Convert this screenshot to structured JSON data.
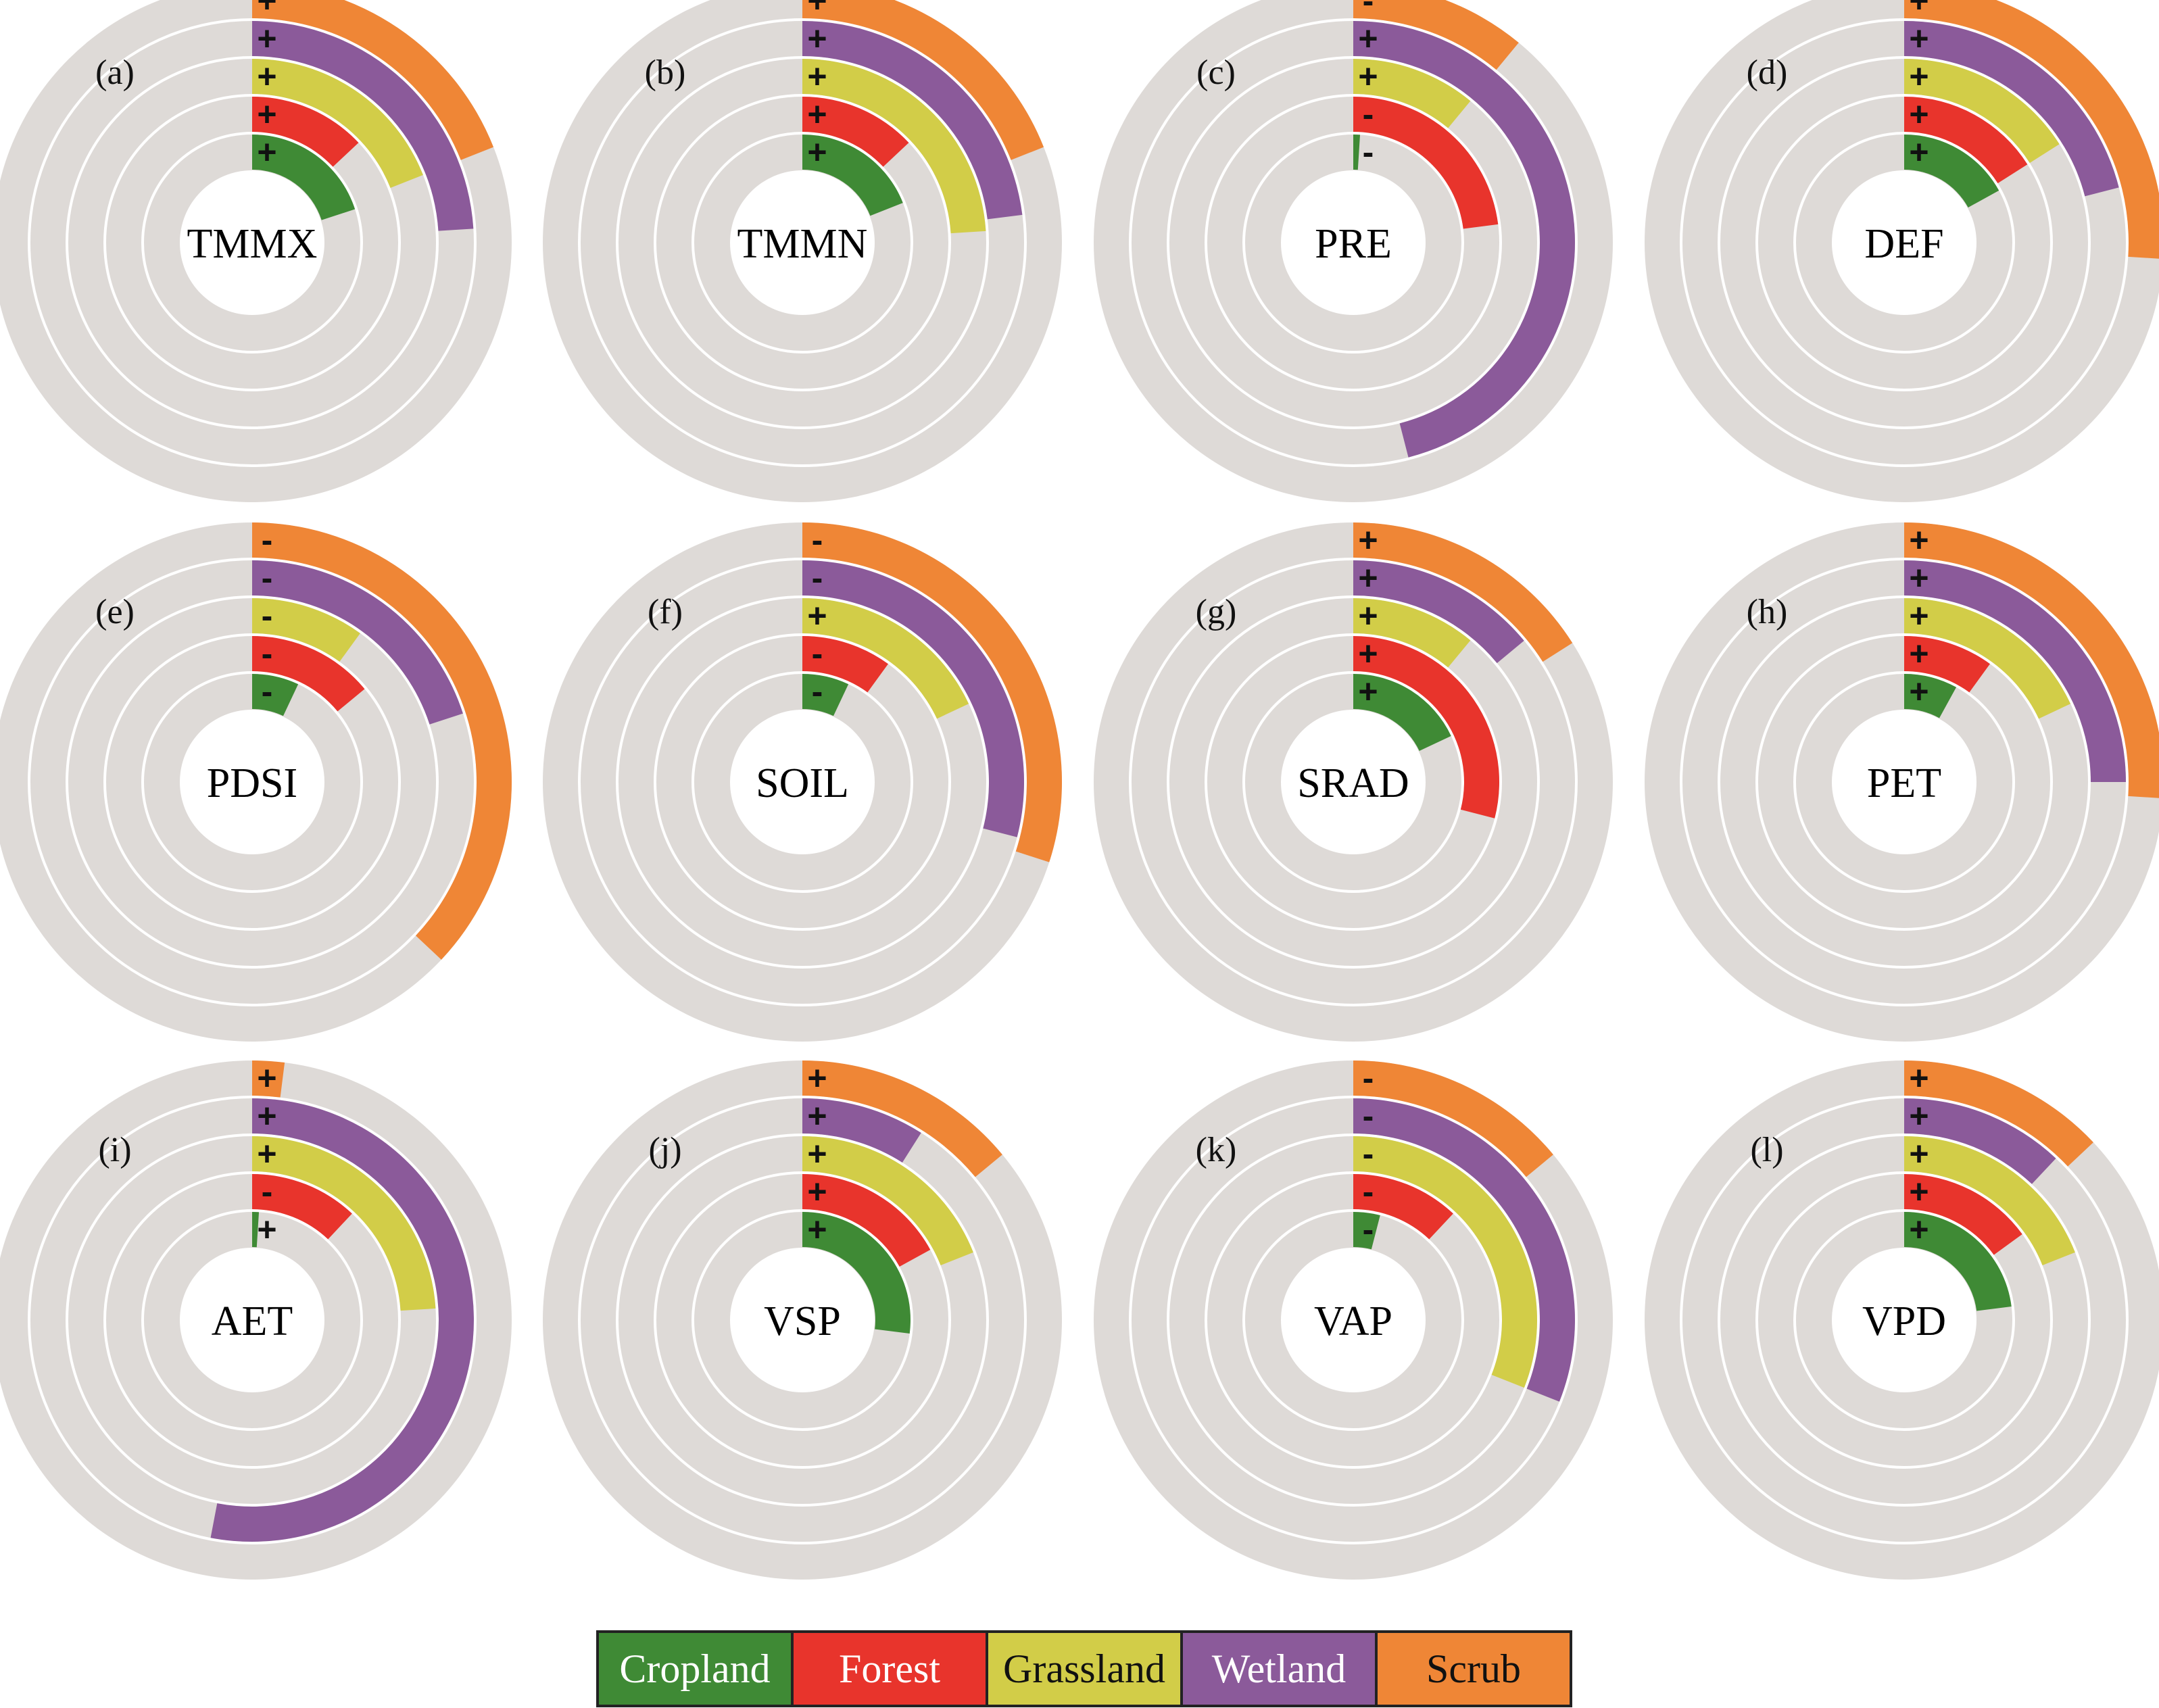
{
  "chart_data": {
    "type": "radial bar",
    "ring_order_inner_to_outer": [
      "Cropland",
      "Forest",
      "Grassland",
      "Wetland",
      "Scrub"
    ],
    "legend": [
      {
        "name": "Cropland",
        "color": "#3f8a35",
        "text_color": "#ffffff"
      },
      {
        "name": "Forest",
        "color": "#e8342c",
        "text_color": "#ffffff"
      },
      {
        "name": "Grassland",
        "color": "#d2cd48",
        "text_color": "#111111"
      },
      {
        "name": "Wetland",
        "color": "#8b5a9a",
        "text_color": "#ffffff"
      },
      {
        "name": "Scrub",
        "color": "#ef8636",
        "text_color": "#111111"
      }
    ],
    "track_color": "#dedad7",
    "value_note": "fraction of full circle, estimated from arc length",
    "panels": [
      {
        "label": "(a)",
        "variable": "TMMX",
        "rings": [
          {
            "value": 0.2,
            "sign": "+"
          },
          {
            "value": 0.13,
            "sign": "+"
          },
          {
            "value": 0.19,
            "sign": "+"
          },
          {
            "value": 0.24,
            "sign": "+"
          },
          {
            "value": 0.19,
            "sign": "+"
          }
        ]
      },
      {
        "label": "(b)",
        "variable": "TMMN",
        "rings": [
          {
            "value": 0.19,
            "sign": "+"
          },
          {
            "value": 0.13,
            "sign": "+"
          },
          {
            "value": 0.24,
            "sign": "+"
          },
          {
            "value": 0.23,
            "sign": "+"
          },
          {
            "value": 0.19,
            "sign": "+"
          }
        ]
      },
      {
        "label": "(c)",
        "variable": "PRE",
        "rings": [
          {
            "value": 0.01,
            "sign": "-"
          },
          {
            "value": 0.23,
            "sign": "-"
          },
          {
            "value": 0.11,
            "sign": "+"
          },
          {
            "value": 0.46,
            "sign": "+"
          },
          {
            "value": 0.11,
            "sign": "-"
          }
        ]
      },
      {
        "label": "(d)",
        "variable": "DEF",
        "rings": [
          {
            "value": 0.17,
            "sign": "+"
          },
          {
            "value": 0.16,
            "sign": "+"
          },
          {
            "value": 0.16,
            "sign": "+"
          },
          {
            "value": 0.21,
            "sign": "+"
          },
          {
            "value": 0.26,
            "sign": "+"
          }
        ]
      },
      {
        "label": "(e)",
        "variable": "PDSI",
        "rings": [
          {
            "value": 0.07,
            "sign": "-"
          },
          {
            "value": 0.14,
            "sign": "-"
          },
          {
            "value": 0.1,
            "sign": "-"
          },
          {
            "value": 0.2,
            "sign": "-"
          },
          {
            "value": 0.37,
            "sign": "-"
          }
        ]
      },
      {
        "label": "(f)",
        "variable": "SOIL",
        "rings": [
          {
            "value": 0.07,
            "sign": "-"
          },
          {
            "value": 0.1,
            "sign": "-"
          },
          {
            "value": 0.18,
            "sign": "+"
          },
          {
            "value": 0.29,
            "sign": "-"
          },
          {
            "value": 0.3,
            "sign": "-"
          }
        ]
      },
      {
        "label": "(g)",
        "variable": "SRAD",
        "rings": [
          {
            "value": 0.18,
            "sign": "+"
          },
          {
            "value": 0.29,
            "sign": "+"
          },
          {
            "value": 0.11,
            "sign": "+"
          },
          {
            "value": 0.14,
            "sign": "+"
          },
          {
            "value": 0.16,
            "sign": "+"
          }
        ]
      },
      {
        "label": "(h)",
        "variable": "PET",
        "rings": [
          {
            "value": 0.08,
            "sign": "+"
          },
          {
            "value": 0.1,
            "sign": "+"
          },
          {
            "value": 0.18,
            "sign": "+"
          },
          {
            "value": 0.25,
            "sign": "+"
          },
          {
            "value": 0.26,
            "sign": "+"
          }
        ]
      },
      {
        "label": "(i)",
        "variable": "AET",
        "rings": [
          {
            "value": 0.01,
            "sign": "+"
          },
          {
            "value": 0.12,
            "sign": "-"
          },
          {
            "value": 0.24,
            "sign": "+"
          },
          {
            "value": 0.53,
            "sign": "+"
          },
          {
            "value": 0.02,
            "sign": "+"
          }
        ]
      },
      {
        "label": "(j)",
        "variable": "VSP",
        "rings": [
          {
            "value": 0.27,
            "sign": "+"
          },
          {
            "value": 0.17,
            "sign": "+"
          },
          {
            "value": 0.19,
            "sign": "+"
          },
          {
            "value": 0.09,
            "sign": "+"
          },
          {
            "value": 0.14,
            "sign": "+"
          }
        ]
      },
      {
        "label": "(k)",
        "variable": "VAP",
        "rings": [
          {
            "value": 0.04,
            "sign": "-"
          },
          {
            "value": 0.12,
            "sign": "-"
          },
          {
            "value": 0.31,
            "sign": "-"
          },
          {
            "value": 0.31,
            "sign": "-"
          },
          {
            "value": 0.14,
            "sign": "-"
          }
        ]
      },
      {
        "label": "(l)",
        "variable": "VPD",
        "rings": [
          {
            "value": 0.23,
            "sign": "+"
          },
          {
            "value": 0.15,
            "sign": "+"
          },
          {
            "value": 0.19,
            "sign": "+"
          },
          {
            "value": 0.12,
            "sign": "+"
          },
          {
            "value": 0.13,
            "sign": "+"
          }
        ]
      }
    ]
  }
}
